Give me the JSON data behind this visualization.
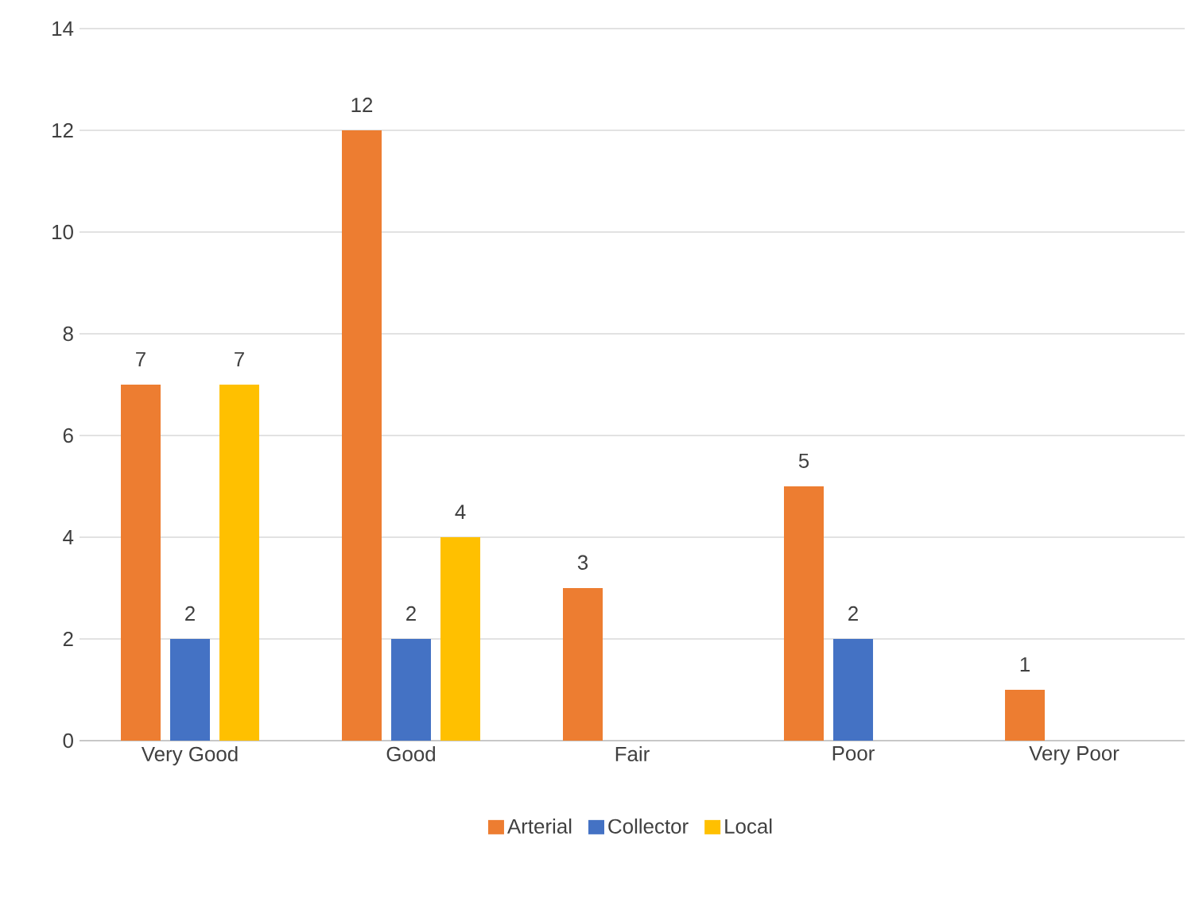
{
  "chart_data": {
    "type": "bar",
    "categories": [
      "Very Good",
      "Good",
      "Fair",
      "Poor",
      "Very Poor"
    ],
    "series": [
      {
        "name": "Arterial",
        "color": "#ed7d31",
        "values": [
          7,
          12,
          3,
          5,
          1
        ]
      },
      {
        "name": "Collector",
        "color": "#4472c4",
        "values": [
          2,
          2,
          null,
          2,
          null
        ]
      },
      {
        "name": "Local",
        "color": "#ffc000",
        "values": [
          7,
          4,
          null,
          null,
          null
        ]
      }
    ],
    "ylim": [
      0,
      14
    ],
    "yticks": [
      0,
      2,
      4,
      6,
      8,
      10,
      12,
      14
    ],
    "grid": "y",
    "legend": "bottom",
    "data_labels": true
  }
}
